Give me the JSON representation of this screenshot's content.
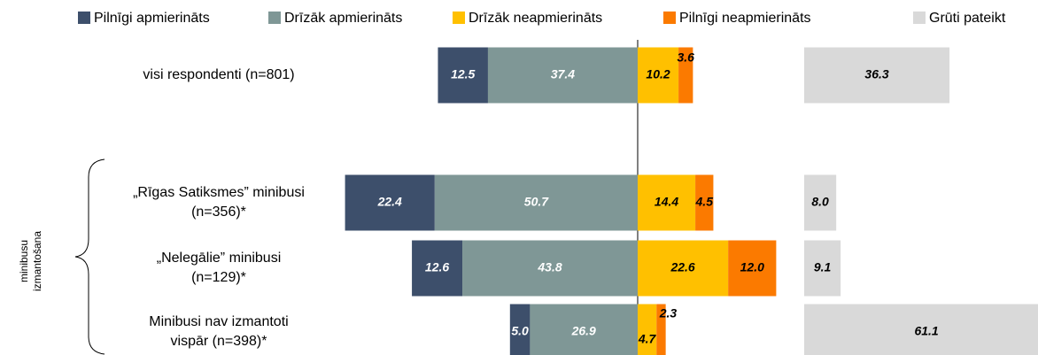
{
  "chart_data": {
    "type": "diverging-bar",
    "categories": [
      "visi respondenti (n=801)",
      "„Rīgas Satiksmes” minibusi\n(n=356)*",
      "„Nelegālie” minibusi\n(n=129)*",
      "Minibusi nav izmantoti\nvispār (n=398)*"
    ],
    "group_label": "minibusu izmantošana",
    "series": [
      {
        "name": "Pilnīgi apmierināts",
        "color": "#3d4f6b",
        "values": [
          12.5,
          22.4,
          12.6,
          5.0
        ],
        "value_labels": [
          "12.5",
          "22.4",
          "12.6",
          "5.0"
        ]
      },
      {
        "name": "Drīzāk apmierināts",
        "color": "#7f9796",
        "values": [
          37.4,
          50.7,
          43.8,
          26.9
        ],
        "value_labels": [
          "37.4",
          "50.7",
          "43.8",
          "26.9"
        ]
      },
      {
        "name": "Drīzāk neapmierināts",
        "color": "#ffc000",
        "values": [
          10.2,
          14.4,
          22.6,
          4.7
        ],
        "value_labels": [
          "10.2",
          "14.4",
          "22.6",
          "4.7"
        ]
      },
      {
        "name": "Pilnīgi neapmierināts",
        "color": "#fb7a00",
        "values": [
          3.6,
          4.5,
          12.0,
          2.3
        ],
        "value_labels": [
          "3.6",
          "4.5",
          "12.0",
          "2.3"
        ]
      },
      {
        "name": "Grūti pateikt",
        "color": "#d9d9d9",
        "values": [
          36.3,
          8.0,
          9.1,
          61.1
        ],
        "value_labels": [
          "36.3",
          "8.0",
          "9.1",
          "61.1"
        ]
      }
    ]
  }
}
